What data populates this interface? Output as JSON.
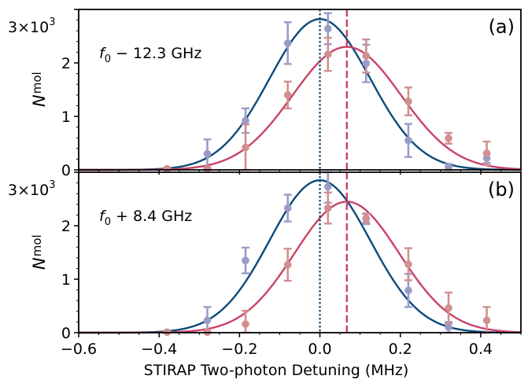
{
  "chart_data": [
    {
      "type": "scatter",
      "panel_label": "(a)",
      "annotation": {
        "italic": "f",
        "sub": "0",
        "rest": " − 12.3 GHz"
      },
      "ylabel": {
        "main": "N",
        "sub": "mol"
      },
      "y_scale_label": {
        "base": "3×10",
        "exp": "3"
      },
      "xlim": [
        -0.6,
        0.5
      ],
      "ylim": [
        0,
        3000
      ],
      "y_ticks": [
        0,
        1000,
        2000,
        3000
      ],
      "y_tick_labels": [
        "0",
        "1",
        "2",
        ""
      ],
      "vlines": [
        {
          "x": 0.0,
          "style": "dotted",
          "color": "#0b4a7a"
        },
        {
          "x": 0.067,
          "style": "dashed",
          "color": "#c9426a"
        }
      ],
      "series": [
        {
          "color": "#0b4a7a",
          "marker_color": "#9a9cc8",
          "fit": {
            "amplitude": 2820,
            "center": 0.0,
            "sigma": 0.125
          },
          "x": [
            -0.28,
            -0.185,
            -0.08,
            0.02,
            0.115,
            0.22,
            0.32,
            0.415
          ],
          "y": [
            300,
            920,
            2370,
            2640,
            1990,
            550,
            50,
            220
          ],
          "err": [
            270,
            230,
            390,
            290,
            350,
            310,
            60,
            90
          ]
        },
        {
          "color": "#c9426a",
          "marker_color": "#d09090",
          "fit": {
            "amplitude": 2300,
            "center": 0.067,
            "sigma": 0.135
          },
          "x": [
            -0.38,
            -0.28,
            -0.185,
            -0.08,
            0.02,
            0.115,
            0.22,
            0.32,
            0.415
          ],
          "y": [
            20,
            20,
            420,
            1400,
            2160,
            2130,
            1280,
            590,
            310
          ],
          "err": [
            20,
            20,
            430,
            250,
            310,
            310,
            260,
            100,
            220
          ]
        }
      ]
    },
    {
      "type": "scatter",
      "panel_label": "(b)",
      "annotation": {
        "italic": "f",
        "sub": "0",
        "rest": " + 8.4 GHz"
      },
      "ylabel": {
        "main": "N",
        "sub": "mol"
      },
      "y_scale_label": {
        "base": "3×10",
        "exp": "3"
      },
      "xlim": [
        -0.6,
        0.5
      ],
      "ylim": [
        0,
        3000
      ],
      "y_ticks": [
        0,
        1000,
        2000,
        3000
      ],
      "y_tick_labels": [
        "0",
        "1",
        "2",
        ""
      ],
      "xlabel": "STIRAP Two-photon Detuning (MHz)",
      "x_ticks": [
        -0.6,
        -0.4,
        -0.2,
        0.0,
        0.2,
        0.4
      ],
      "x_tick_labels": [
        "−0.6",
        "−0.4",
        "−0.2",
        "0.0",
        "0.2",
        "0.4"
      ],
      "vlines": [
        {
          "x": 0.0,
          "style": "dotted",
          "color": "#0b4a7a"
        },
        {
          "x": 0.067,
          "style": "dashed",
          "color": "#c9426a"
        }
      ],
      "series": [
        {
          "color": "#0b4a7a",
          "marker_color": "#9a9cc8",
          "fit": {
            "amplitude": 2850,
            "center": 0.0,
            "sigma": 0.125
          },
          "x": [
            -0.28,
            -0.185,
            -0.08,
            0.02,
            0.115,
            0.22,
            0.32
          ],
          "y": [
            230,
            1350,
            2330,
            2730,
            2130,
            790,
            100
          ],
          "err": [
            250,
            240,
            250,
            300,
            100,
            310,
            100
          ]
        },
        {
          "color": "#c9426a",
          "marker_color": "#d09090",
          "fit": {
            "amplitude": 2450,
            "center": 0.067,
            "sigma": 0.13
          },
          "x": [
            -0.38,
            -0.28,
            -0.185,
            -0.08,
            0.02,
            0.115,
            0.22,
            0.32,
            0.415
          ],
          "y": [
            10,
            10,
            160,
            1270,
            2330,
            2140,
            1280,
            460,
            230
          ],
          "err": [
            15,
            15,
            250,
            300,
            290,
            80,
            300,
            290,
            250
          ]
        }
      ]
    }
  ]
}
